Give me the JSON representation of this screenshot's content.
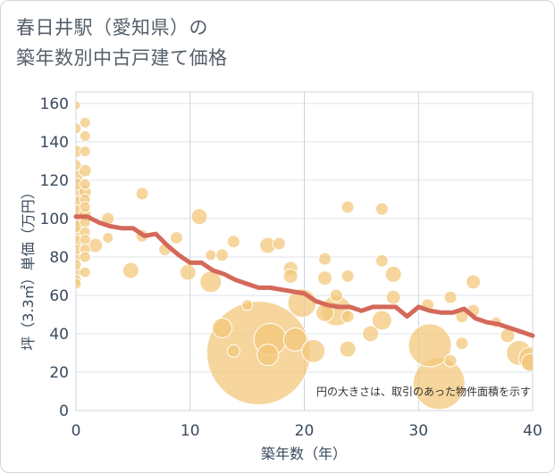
{
  "title_lines": [
    "春日井駅（愛知県）の",
    "築年数別中古戸建て価格"
  ],
  "chart_data": {
    "type": "scatter",
    "title": "春日井駅（愛知県）の築年数別中古戸建て価格",
    "xlabel": "築年数（年）",
    "ylabel": "坪（3.3㎡）単価（万円）",
    "xlim": [
      0,
      40
    ],
    "ylim": [
      0,
      166
    ],
    "x_ticks": [
      0,
      10,
      20,
      30,
      40
    ],
    "y_ticks": [
      0,
      20,
      40,
      60,
      80,
      100,
      120,
      140,
      160
    ],
    "grid": true,
    "note": "円の大きさは、取引のあった物件面積を示す",
    "bubble_color": "#f3c677",
    "line_color": "#d4695a",
    "points": [
      {
        "x": 0,
        "y": 159,
        "s": 5
      },
      {
        "x": 0,
        "y": 147,
        "s": 6
      },
      {
        "x": 0,
        "y": 135,
        "s": 7
      },
      {
        "x": 0,
        "y": 128,
        "s": 6
      },
      {
        "x": 0,
        "y": 122,
        "s": 8
      },
      {
        "x": 0,
        "y": 118,
        "s": 7
      },
      {
        "x": 0,
        "y": 113,
        "s": 9
      },
      {
        "x": 0,
        "y": 108,
        "s": 8
      },
      {
        "x": 0,
        "y": 104,
        "s": 7
      },
      {
        "x": 0,
        "y": 100,
        "s": 9
      },
      {
        "x": 0,
        "y": 96,
        "s": 7
      },
      {
        "x": 0,
        "y": 92,
        "s": 8
      },
      {
        "x": 0,
        "y": 88,
        "s": 7
      },
      {
        "x": 0,
        "y": 84,
        "s": 6
      },
      {
        "x": 0,
        "y": 80,
        "s": 7
      },
      {
        "x": 0,
        "y": 76,
        "s": 6
      },
      {
        "x": 0,
        "y": 72,
        "s": 7
      },
      {
        "x": 0,
        "y": 68,
        "s": 6
      },
      {
        "x": 0,
        "y": 66,
        "s": 6
      },
      {
        "x": 0.8,
        "y": 150,
        "s": 6
      },
      {
        "x": 0.8,
        "y": 143,
        "s": 6
      },
      {
        "x": 0.8,
        "y": 135,
        "s": 6
      },
      {
        "x": 0.8,
        "y": 125,
        "s": 7
      },
      {
        "x": 0.8,
        "y": 118,
        "s": 6
      },
      {
        "x": 0.8,
        "y": 114,
        "s": 7
      },
      {
        "x": 0.8,
        "y": 110,
        "s": 6
      },
      {
        "x": 0.8,
        "y": 106,
        "s": 6
      },
      {
        "x": 0.8,
        "y": 102,
        "s": 7
      },
      {
        "x": 0.8,
        "y": 98,
        "s": 6
      },
      {
        "x": 0.8,
        "y": 93,
        "s": 6
      },
      {
        "x": 0.8,
        "y": 89,
        "s": 6
      },
      {
        "x": 0.8,
        "y": 84,
        "s": 6
      },
      {
        "x": 0.8,
        "y": 80,
        "s": 6
      },
      {
        "x": 0.8,
        "y": 72,
        "s": 6
      },
      {
        "x": 1.7,
        "y": 86,
        "s": 8
      },
      {
        "x": 2.8,
        "y": 100,
        "s": 7
      },
      {
        "x": 2.8,
        "y": 90,
        "s": 6
      },
      {
        "x": 4.8,
        "y": 73,
        "s": 9
      },
      {
        "x": 5.8,
        "y": 113,
        "s": 7
      },
      {
        "x": 5.8,
        "y": 91,
        "s": 7
      },
      {
        "x": 7.8,
        "y": 84,
        "s": 7
      },
      {
        "x": 8.8,
        "y": 90,
        "s": 7
      },
      {
        "x": 9.8,
        "y": 72,
        "s": 9
      },
      {
        "x": 10.8,
        "y": 101,
        "s": 9
      },
      {
        "x": 11.8,
        "y": 81,
        "s": 6
      },
      {
        "x": 11.8,
        "y": 67,
        "s": 12
      },
      {
        "x": 12.8,
        "y": 81,
        "s": 7
      },
      {
        "x": 12.8,
        "y": 43,
        "s": 11
      },
      {
        "x": 13.8,
        "y": 88,
        "s": 7
      },
      {
        "x": 13.8,
        "y": 31,
        "s": 7
      },
      {
        "x": 15.0,
        "y": 55,
        "s": 6
      },
      {
        "x": 16.0,
        "y": 30,
        "s": 58
      },
      {
        "x": 16.8,
        "y": 86,
        "s": 9
      },
      {
        "x": 16.8,
        "y": 29,
        "s": 12
      },
      {
        "x": 17.0,
        "y": 37,
        "s": 18
      },
      {
        "x": 17.8,
        "y": 87,
        "s": 7
      },
      {
        "x": 18.8,
        "y": 74,
        "s": 8
      },
      {
        "x": 18.8,
        "y": 70,
        "s": 8
      },
      {
        "x": 19.2,
        "y": 37,
        "s": 13
      },
      {
        "x": 19.8,
        "y": 56,
        "s": 16
      },
      {
        "x": 20.8,
        "y": 31,
        "s": 13
      },
      {
        "x": 21.8,
        "y": 79,
        "s": 7
      },
      {
        "x": 21.8,
        "y": 69,
        "s": 8
      },
      {
        "x": 21.8,
        "y": 51,
        "s": 10
      },
      {
        "x": 22.8,
        "y": 60,
        "s": 7
      },
      {
        "x": 22.8,
        "y": 52,
        "s": 17
      },
      {
        "x": 23.8,
        "y": 106,
        "s": 7
      },
      {
        "x": 23.8,
        "y": 70,
        "s": 7
      },
      {
        "x": 23.8,
        "y": 49,
        "s": 7
      },
      {
        "x": 23.8,
        "y": 32,
        "s": 9
      },
      {
        "x": 25.8,
        "y": 40,
        "s": 9
      },
      {
        "x": 26.8,
        "y": 105,
        "s": 7
      },
      {
        "x": 26.8,
        "y": 78,
        "s": 7
      },
      {
        "x": 26.8,
        "y": 47,
        "s": 11
      },
      {
        "x": 27.8,
        "y": 71,
        "s": 9
      },
      {
        "x": 27.8,
        "y": 59,
        "s": 8
      },
      {
        "x": 30.8,
        "y": 55,
        "s": 7
      },
      {
        "x": 31.0,
        "y": 34,
        "s": 24
      },
      {
        "x": 31.8,
        "y": 14,
        "s": 29
      },
      {
        "x": 32.8,
        "y": 59,
        "s": 7
      },
      {
        "x": 32.8,
        "y": 26,
        "s": 7
      },
      {
        "x": 33.8,
        "y": 49,
        "s": 7
      },
      {
        "x": 33.8,
        "y": 35,
        "s": 7
      },
      {
        "x": 34.8,
        "y": 67,
        "s": 8
      },
      {
        "x": 34.8,
        "y": 52,
        "s": 7
      },
      {
        "x": 36.8,
        "y": 46,
        "s": 6
      },
      {
        "x": 37.8,
        "y": 39,
        "s": 8
      },
      {
        "x": 38.8,
        "y": 30,
        "s": 14
      },
      {
        "x": 39.8,
        "y": 27,
        "s": 13
      },
      {
        "x": 39.8,
        "y": 25,
        "s": 10
      }
    ],
    "trend_line": {
      "x": [
        0,
        1,
        2,
        3,
        4,
        5,
        6,
        7,
        8,
        9,
        10,
        11,
        12,
        13,
        14,
        15,
        16,
        17,
        18,
        19,
        20,
        21,
        22,
        23,
        24,
        25,
        26,
        27,
        28,
        29,
        30,
        31,
        32,
        33,
        34,
        35,
        36,
        37,
        38,
        39,
        40
      ],
      "y": [
        101,
        101,
        98,
        96,
        95,
        95,
        91,
        92,
        86,
        81,
        77,
        77,
        73,
        71,
        68,
        66,
        64,
        64,
        63,
        62,
        61,
        57,
        55,
        54,
        54,
        52,
        54,
        54,
        54,
        49,
        54,
        52,
        51,
        51,
        53,
        48,
        46,
        45,
        43,
        41,
        39
      ]
    }
  }
}
